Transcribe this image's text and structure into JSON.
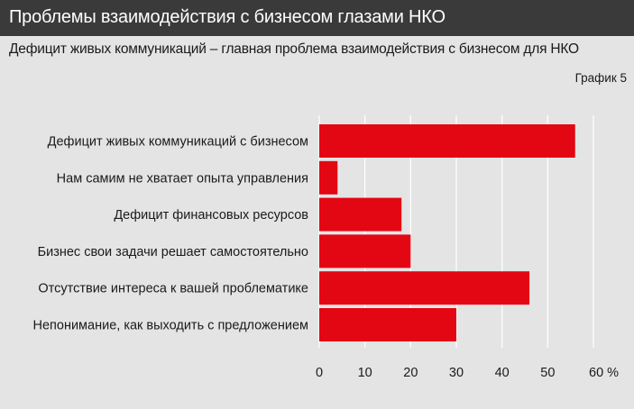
{
  "header": {
    "title": "Проблемы взаимодействия с бизнесом глазами НКО",
    "subtitle": "Дефицит живых коммуникаций – главная проблема взаимодействия с бизнесом для НКО",
    "chart_number": "График 5"
  },
  "colors": {
    "bar": "#e30613",
    "header_bg": "#3a3a3a",
    "background": "#e4e4e4",
    "grid": "#ffffff"
  },
  "chart_data": {
    "type": "bar",
    "orientation": "horizontal",
    "title": "Проблемы взаимодействия с бизнесом глазами НКО",
    "subtitle": "Дефицит живых коммуникаций – главная проблема взаимодействия с бизнесом для НКО",
    "categories": [
      "Дефицит живых коммуникаций с бизнесом",
      "Нам самим не хватает опыта управления",
      "Дефицит финансовых ресурсов",
      "Бизнес свои задачи решает самостоятельно",
      "Отсутствие интереса к вашей проблематике",
      "Непонимание, как выходить с предложением"
    ],
    "values": [
      56,
      4,
      18,
      20,
      46,
      30
    ],
    "xlim": [
      0,
      60
    ],
    "xticks": [
      "0",
      "10",
      "20",
      "30",
      "40",
      "50",
      "60 %"
    ],
    "grid": true,
    "legend": "none"
  }
}
